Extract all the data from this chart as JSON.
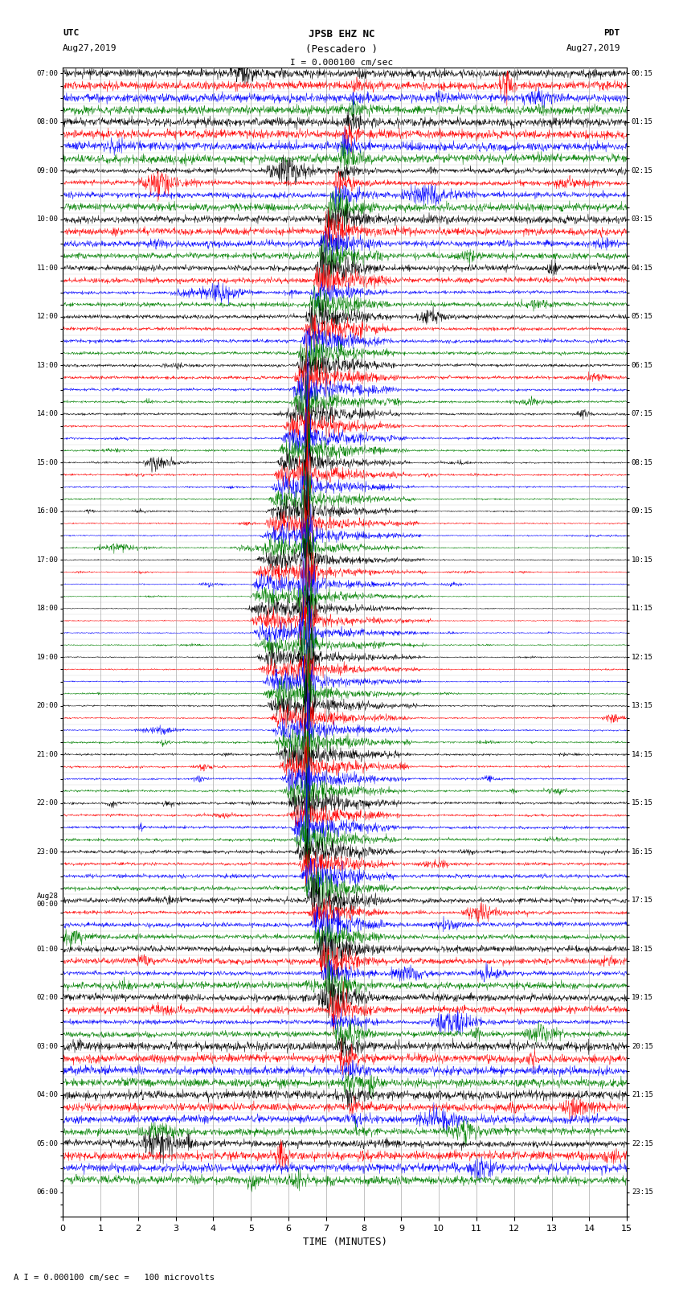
{
  "title_line1": "JPSB EHZ NC",
  "title_line2": "(Pescadero )",
  "scale_text": "I = 0.000100 cm/sec",
  "footer_text": "A I = 0.000100 cm/sec =   100 microvolts",
  "utc_label": "UTC",
  "utc_date": "Aug27,2019",
  "pdt_label": "PDT",
  "pdt_date": "Aug27,2019",
  "xlabel": "TIME (MINUTES)",
  "left_times": [
    "07:00",
    "",
    "",
    "",
    "08:00",
    "",
    "",
    "",
    "09:00",
    "",
    "",
    "",
    "10:00",
    "",
    "",
    "",
    "11:00",
    "",
    "",
    "",
    "12:00",
    "",
    "",
    "",
    "13:00",
    "",
    "",
    "",
    "14:00",
    "",
    "",
    "",
    "15:00",
    "",
    "",
    "",
    "16:00",
    "",
    "",
    "",
    "17:00",
    "",
    "",
    "",
    "18:00",
    "",
    "",
    "",
    "19:00",
    "",
    "",
    "",
    "20:00",
    "",
    "",
    "",
    "21:00",
    "",
    "",
    "",
    "22:00",
    "",
    "",
    "",
    "23:00",
    "",
    "",
    "",
    "Aug28\n00:00",
    "",
    "",
    "",
    "01:00",
    "",
    "",
    "",
    "02:00",
    "",
    "",
    "",
    "03:00",
    "",
    "",
    "",
    "04:00",
    "",
    "",
    "",
    "05:00",
    "",
    "",
    "",
    "06:00",
    "",
    ""
  ],
  "right_times": [
    "00:15",
    "",
    "",
    "",
    "01:15",
    "",
    "",
    "",
    "02:15",
    "",
    "",
    "",
    "03:15",
    "",
    "",
    "",
    "04:15",
    "",
    "",
    "",
    "05:15",
    "",
    "",
    "",
    "06:15",
    "",
    "",
    "",
    "07:15",
    "",
    "",
    "",
    "08:15",
    "",
    "",
    "",
    "09:15",
    "",
    "",
    "",
    "10:15",
    "",
    "",
    "",
    "11:15",
    "",
    "",
    "",
    "12:15",
    "",
    "",
    "",
    "13:15",
    "",
    "",
    "",
    "14:15",
    "",
    "",
    "",
    "15:15",
    "",
    "",
    "",
    "16:15",
    "",
    "",
    "",
    "17:15",
    "",
    "",
    "",
    "18:15",
    "",
    "",
    "",
    "19:15",
    "",
    "",
    "",
    "20:15",
    "",
    "",
    "",
    "21:15",
    "",
    "",
    "",
    "22:15",
    "",
    "",
    "",
    "23:15",
    "",
    ""
  ],
  "n_rows": 92,
  "colors_cycle": [
    "black",
    "red",
    "blue",
    "green"
  ],
  "bg_color": "#ffffff",
  "earthquake_row": 44,
  "earthquake_minute": 6.5,
  "xticks": [
    0,
    1,
    2,
    3,
    4,
    5,
    6,
    7,
    8,
    9,
    10,
    11,
    12,
    13,
    14,
    15
  ],
  "xlim": [
    0,
    15
  ],
  "grid_color": "#888888",
  "vline_color": "#888888"
}
